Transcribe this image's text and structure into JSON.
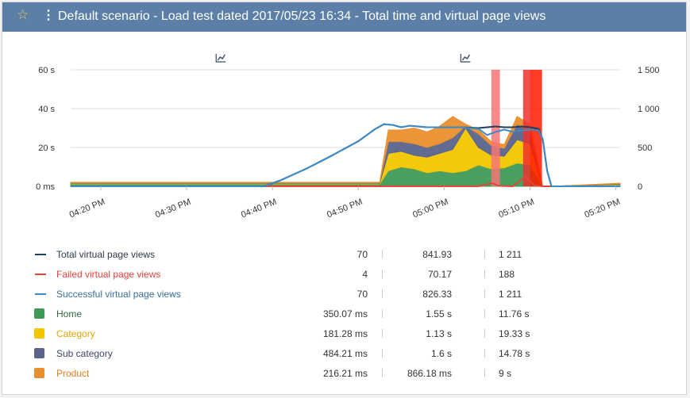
{
  "header": {
    "title": "Default scenario - Load test dated 2017/05/23 16:34 - Total time and virtual page views",
    "star_icon": "star-icon",
    "menu_icon": "kebab-menu-icon",
    "bg_color": "#5b7fa6"
  },
  "chart_data": {
    "type": "area",
    "left_axis": {
      "ticks": [
        "60 s",
        "40 s",
        "20 s",
        "0 ms"
      ],
      "ylim": [
        0,
        60
      ],
      "unit": "s"
    },
    "right_axis": {
      "ticks": [
        "1 500",
        "1 000",
        "500",
        "0"
      ],
      "ylim": [
        0,
        1500
      ]
    },
    "x_ticks": [
      "04:20 PM",
      "04:30 PM",
      "04:40 PM",
      "04:50 PM",
      "05:00 PM",
      "05:10 PM",
      "05:20 PM"
    ],
    "x_range_minutes": [
      -3.5,
      60.5
    ],
    "x_origin_label": "04:20 PM",
    "area_times_minutes": [
      -3.5,
      32.5,
      33.5,
      35,
      36.5,
      38,
      39.5,
      41,
      42.5,
      44,
      45.5,
      47,
      48.5,
      50,
      51.5,
      52.5,
      60.5
    ],
    "stacked_series": [
      {
        "name": "Home",
        "color": "#3f9a57",
        "values": [
          1.2,
          1.2,
          8,
          10,
          9,
          7,
          8,
          7,
          8,
          11,
          9,
          9.5,
          12,
          11,
          0,
          0,
          0.8
        ]
      },
      {
        "name": "Category",
        "color": "#f2c500",
        "values": [
          0.4,
          0.4,
          9,
          8,
          7,
          8,
          9,
          12,
          22,
          9,
          7,
          6,
          12,
          11,
          0,
          0,
          0.3
        ]
      },
      {
        "name": "Sub category",
        "color": "#5a648c",
        "values": [
          0.3,
          0.3,
          6,
          5,
          6,
          5,
          5,
          6,
          1,
          7,
          5,
          4,
          8,
          6,
          0,
          0,
          0.3
        ]
      },
      {
        "name": "Product",
        "color": "#ea8f2e",
        "values": [
          0.2,
          0.2,
          6,
          6,
          8,
          8,
          9,
          11,
          1,
          2,
          2,
          2,
          4,
          4,
          0,
          0,
          0.2
        ]
      }
    ],
    "line_series": [
      {
        "name": "Total virtual page views",
        "color": "#1f3f5f",
        "points": [
          [
            -3.5,
            0
          ],
          [
            19,
            0
          ],
          [
            21,
            80
          ],
          [
            24,
            230
          ],
          [
            27,
            400
          ],
          [
            30,
            580
          ],
          [
            32,
            740
          ],
          [
            33,
            800
          ],
          [
            34,
            790
          ],
          [
            35,
            760
          ],
          [
            36,
            780
          ],
          [
            38,
            760
          ],
          [
            40,
            760
          ],
          [
            42,
            760
          ],
          [
            44,
            750
          ],
          [
            46,
            770
          ],
          [
            47,
            760
          ],
          [
            48,
            760
          ],
          [
            49,
            770
          ],
          [
            50,
            760
          ],
          [
            51,
            740
          ],
          [
            51.5,
            600
          ],
          [
            52,
            200
          ],
          [
            52.5,
            0
          ],
          [
            60.5,
            0
          ]
        ]
      },
      {
        "name": "Failed virtual page views",
        "color": "#e8423a",
        "points": [
          [
            -3.5,
            0
          ],
          [
            44,
            0
          ],
          [
            45.5,
            40
          ],
          [
            46.5,
            5
          ],
          [
            48,
            0
          ],
          [
            49.5,
            130
          ],
          [
            50.5,
            10
          ],
          [
            51.5,
            0
          ],
          [
            60.5,
            0
          ]
        ]
      },
      {
        "name": "Successful virtual page views",
        "color": "#3a8bc9",
        "points": [
          [
            -3.5,
            0
          ],
          [
            19,
            0
          ],
          [
            21,
            80
          ],
          [
            24,
            230
          ],
          [
            27,
            400
          ],
          [
            30,
            580
          ],
          [
            32,
            740
          ],
          [
            33,
            800
          ],
          [
            34,
            790
          ],
          [
            35,
            760
          ],
          [
            36,
            780
          ],
          [
            38,
            760
          ],
          [
            40,
            760
          ],
          [
            42,
            760
          ],
          [
            44,
            740
          ],
          [
            45,
            660
          ],
          [
            46,
            700
          ],
          [
            47,
            730
          ],
          [
            48,
            700
          ],
          [
            49,
            720
          ],
          [
            50,
            730
          ],
          [
            51,
            720
          ],
          [
            51.5,
            600
          ],
          [
            52,
            200
          ],
          [
            52.5,
            0
          ],
          [
            60.5,
            0
          ]
        ]
      }
    ],
    "error_bands": [
      {
        "from_minutes": 45.5,
        "to_minutes": 46.5,
        "color": "#f47575"
      },
      {
        "from_minutes": 49.2,
        "to_minutes": 50.0,
        "color": "#ee3030"
      },
      {
        "from_minutes": 50.0,
        "to_minutes": 51.4,
        "color": "#ff1a00"
      }
    ],
    "marker_icons_minutes": [
      14,
      42.5
    ],
    "grid": true
  },
  "legend": [
    {
      "name": "Total virtual page views",
      "kind": "line",
      "color": "#1f3f5f",
      "text_color": "#2b3a4a",
      "min": "70",
      "avg": "841.93",
      "max": "1 211"
    },
    {
      "name": "Failed virtual page views",
      "kind": "line",
      "color": "#e8423a",
      "text_color": "#e8423a",
      "min": "4",
      "avg": "70.17",
      "max": "188"
    },
    {
      "name": "Successful virtual page views",
      "kind": "line",
      "color": "#3a8bc9",
      "text_color": "#3a6e9a",
      "min": "70",
      "avg": "826.33",
      "max": "1 211"
    },
    {
      "name": "Home",
      "kind": "box",
      "color": "#3f9a57",
      "text_color": "#2f6a3e",
      "min": "350.07 ms",
      "avg": "1.55 s",
      "max": "11.76 s"
    },
    {
      "name": "Category",
      "kind": "box",
      "color": "#f2c500",
      "text_color": "#e4a200",
      "min": "181.28 ms",
      "avg": "1.13 s",
      "max": "19.33 s"
    },
    {
      "name": "Sub category",
      "kind": "box",
      "color": "#5a648c",
      "text_color": "#3b4466",
      "min": "484.21 ms",
      "avg": "1.6 s",
      "max": "14.78 s"
    },
    {
      "name": "Product",
      "kind": "box",
      "color": "#ea8f2e",
      "text_color": "#e07f1a",
      "min": "216.21 ms",
      "avg": "866.18 ms",
      "max": "9 s"
    }
  ]
}
